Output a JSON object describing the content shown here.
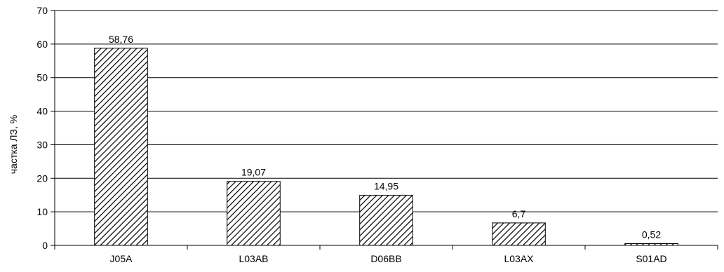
{
  "chart_data": {
    "type": "bar",
    "title": "",
    "xlabel": "",
    "ylabel": "частка ЛЗ, %",
    "ylim": [
      0,
      70
    ],
    "yticks": [
      0,
      10,
      20,
      30,
      40,
      50,
      60,
      70
    ],
    "ytick_labels": [
      "0",
      "10",
      "20",
      "30",
      "40",
      "50",
      "60",
      "70"
    ],
    "grid": true,
    "legend": "none",
    "categories": [
      "J05A",
      "L03AB",
      "D06BB",
      "L03AX",
      "S01AD"
    ],
    "values": [
      58.76,
      19.07,
      14.95,
      6.7,
      0.52
    ],
    "value_labels": [
      "58,76",
      "19,07",
      "14,95",
      "6,7",
      "0,52"
    ],
    "bar_fill": "hatched",
    "colors": {
      "bar_stroke": "#000000",
      "hatch": "#000000",
      "bar_background": "#ffffff",
      "grid": "#000000",
      "axis": "#000000"
    }
  }
}
